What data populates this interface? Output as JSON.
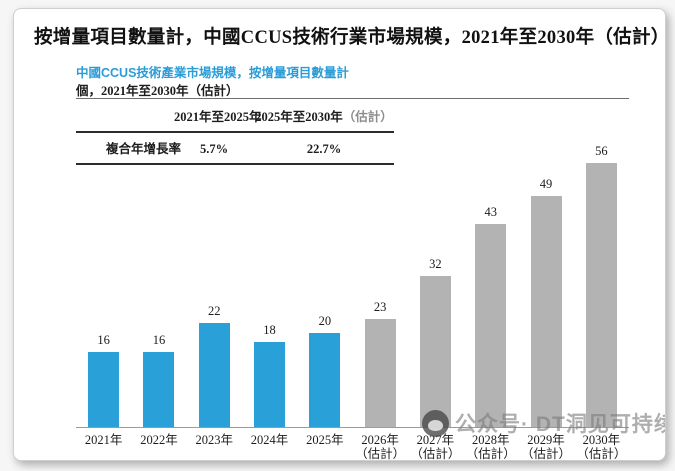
{
  "page": {
    "title": "按增量項目數量計，中國CCUS技術行業市場規模，2021年至2030年（估計）"
  },
  "figure": {
    "subtitle": "中國CCUS技術產業市場規模，按增量項目數量計",
    "unit_line": "個，2021年至2030年（估計）"
  },
  "cagr_table": {
    "row_label": "複合年增長率",
    "col1_header": "2021年至2025年",
    "col2_header_main": "2025年至2030年",
    "col2_header_suffix": "（估計）",
    "col1_value": "5.7%",
    "col2_value": "22.7%"
  },
  "chart_data": {
    "type": "bar",
    "title": "中國CCUS技術產業市場規模，按增量項目數量計",
    "unit": "個",
    "categories": [
      "2021年",
      "2022年",
      "2023年",
      "2024年",
      "2025年",
      "2026年（估計）",
      "2027年（估計）",
      "2028年（估計）",
      "2029年（估計）",
      "2030年（估計）"
    ],
    "values": [
      16,
      16,
      22,
      18,
      20,
      23,
      32,
      43,
      49,
      56
    ],
    "estimated_from_index": 5,
    "colors": {
      "actual": "#29a1d8",
      "estimated": "#b3b3b3"
    },
    "xlabel": "",
    "ylabel": "",
    "ylim": [
      0,
      60
    ],
    "grid": false,
    "legend": "none",
    "data_labels": true,
    "cagr_2021_2025": "5.7%",
    "cagr_2025_2030": "22.7%"
  },
  "watermark": {
    "text": "公众号· DT洞见可持续"
  }
}
